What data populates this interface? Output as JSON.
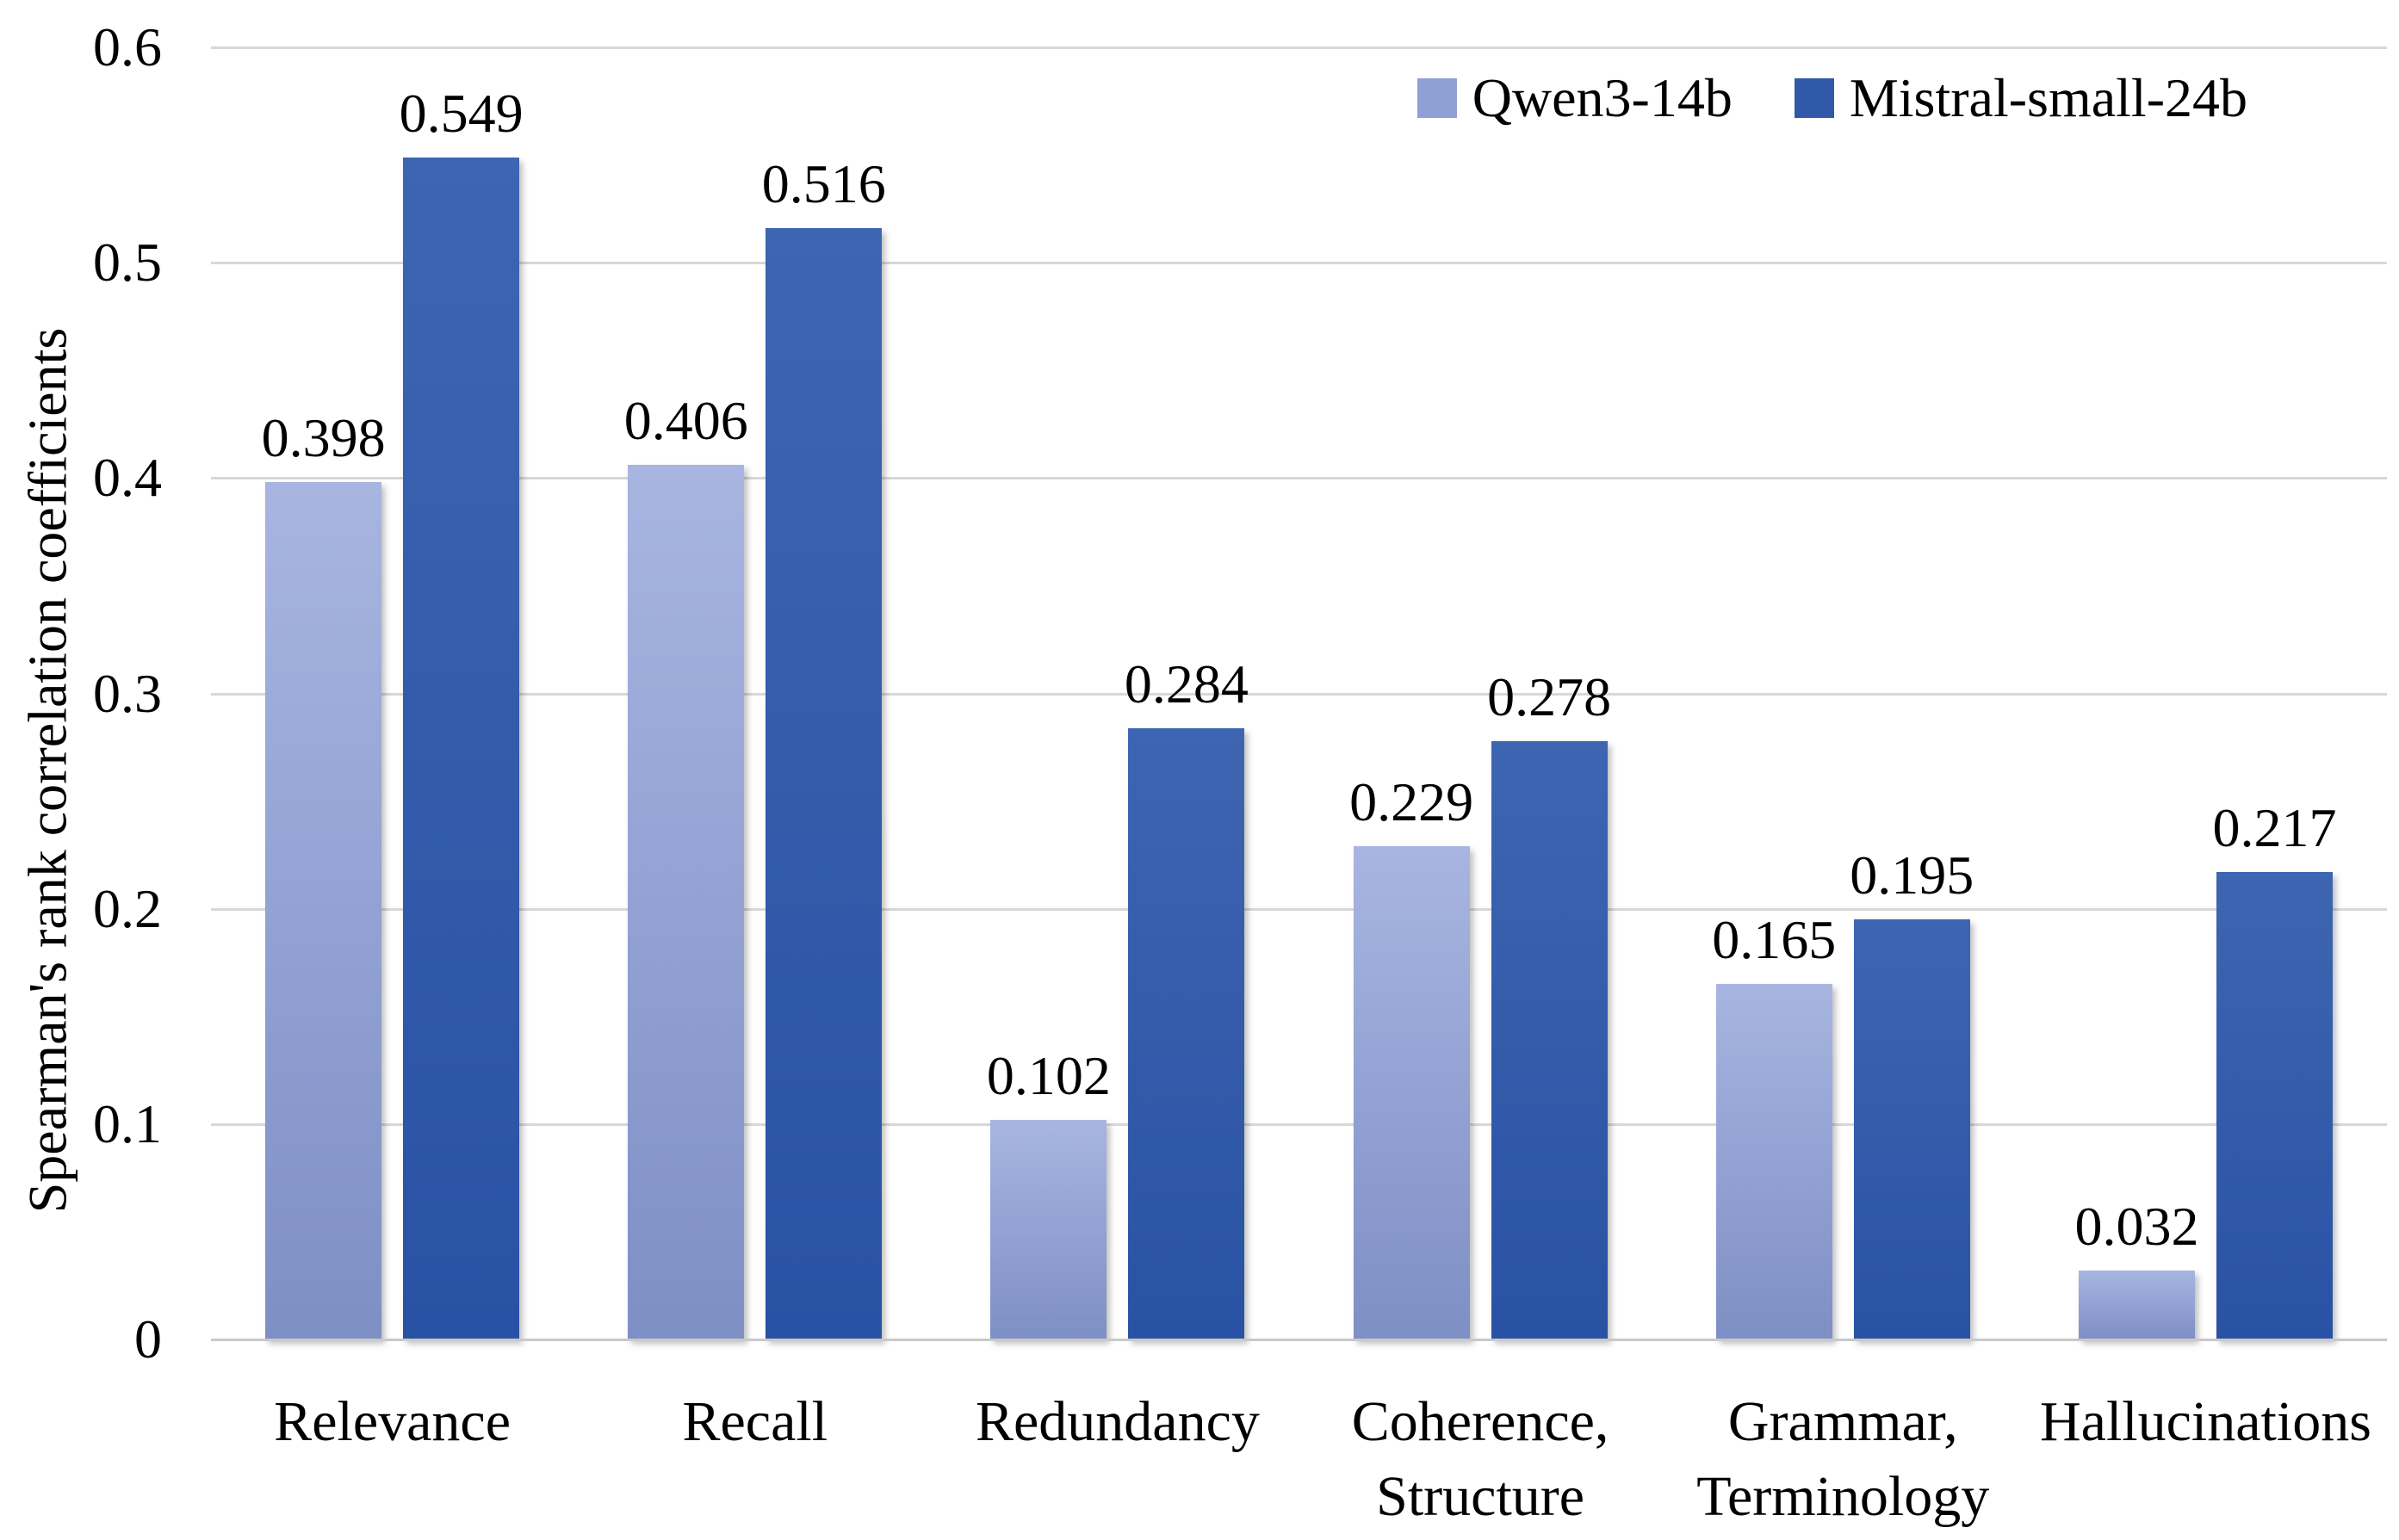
{
  "chart_data": {
    "type": "bar",
    "ylabel": "Spearman's rank correlation coefficients",
    "xlabel": "",
    "ylim": [
      0,
      0.6
    ],
    "yticks": [
      0,
      0.1,
      0.2,
      0.3,
      0.4,
      0.5,
      0.6
    ],
    "grid": "horizontal",
    "legend_position": "top-right-inside",
    "value_label_decimals": 3,
    "categories": [
      "Relevance",
      "Recall",
      "Redundancy",
      "Coherence,\nStructure",
      "Grammar,\nTerminology",
      "Hallucinations"
    ],
    "series": [
      {
        "name": "Qwen3-14b",
        "legend_color": "#8fa0d4",
        "color_top": "#a8b5e1",
        "color_bottom": "#7e8fc5",
        "values": [
          0.398,
          0.406,
          0.102,
          0.229,
          0.165,
          0.032
        ]
      },
      {
        "name": "Mistral-small-24b",
        "legend_color": "#3059aa",
        "color_top": "#3e65b1",
        "color_bottom": "#2a52a4",
        "values": [
          0.549,
          0.516,
          0.284,
          0.278,
          0.195,
          0.217
        ]
      }
    ]
  },
  "colors": {
    "background": "#ffffff",
    "gridline": "#d8d8d8",
    "baseline": "#c9c9c9",
    "text": "#000000"
  }
}
